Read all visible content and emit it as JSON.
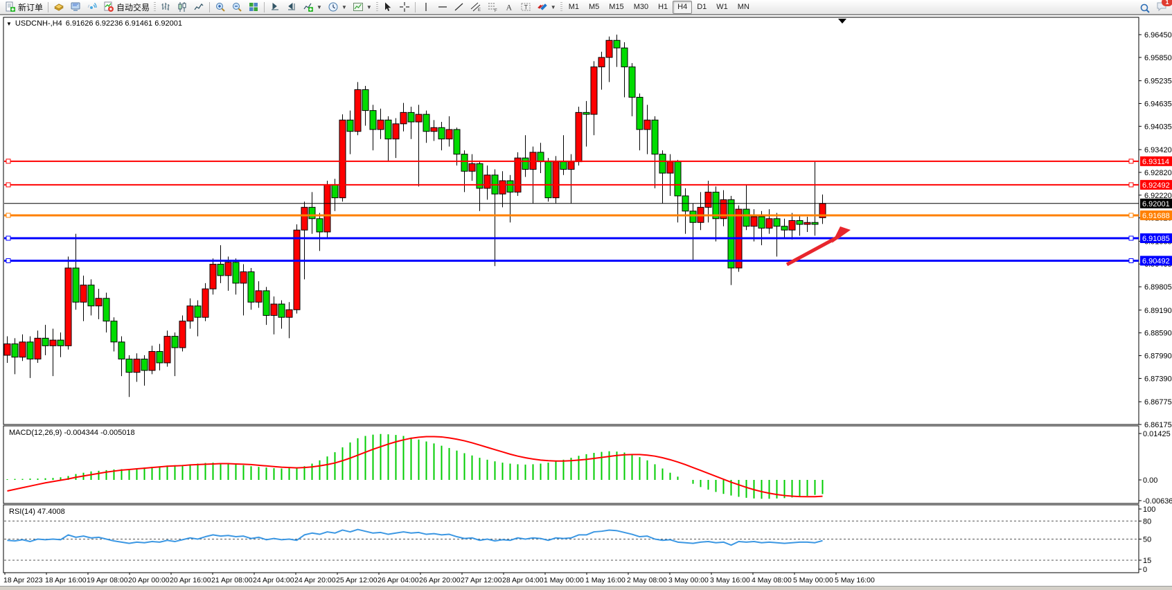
{
  "toolbar": {
    "new_order_label": "新订单",
    "auto_trading_label": "自动交易",
    "timeframes": [
      "M1",
      "M5",
      "M15",
      "M30",
      "H1",
      "H4",
      "D1",
      "W1",
      "MN"
    ],
    "active_timeframe": "H4",
    "notification_count": "1"
  },
  "chart": {
    "title_symbol": "USDCNH-,H4",
    "title_ohlc": "6.91626 6.92236 6.91461 6.92001",
    "axis_ticks": [
      "6.96450",
      "6.95850",
      "6.95235",
      "6.94635",
      "6.94035",
      "6.93420",
      "6.92820",
      "6.92220",
      "6.91620",
      "6.91005",
      "6.90405",
      "6.89805",
      "6.89190",
      "6.88590",
      "6.87990",
      "6.87390",
      "6.86775",
      "6.86175"
    ],
    "colors": {
      "up_candle": "#FF0000",
      "down_candle": "#00DC00",
      "line_red": "#FF0000",
      "line_blue": "#0000FF",
      "line_orange": "#FF8000",
      "current_price_line": "#000000",
      "macd_histogram": "#00CC00",
      "macd_signal": "#FF0000",
      "rsi_line": "#3B97E3",
      "arrow": "#E8262D"
    },
    "hlines": [
      {
        "price": 6.93114,
        "label": "6.93114",
        "color": "#FF0000",
        "width": 2
      },
      {
        "price": 6.92492,
        "label": "6.92492",
        "color": "#FF0000",
        "width": 2
      },
      {
        "price": 6.92001,
        "label": "6.92001",
        "color": "#000000",
        "width": 1
      },
      {
        "price": 6.91688,
        "label": "6.91688",
        "color": "#FF8000",
        "width": 3
      },
      {
        "price": 6.91085,
        "label": "6.91085",
        "color": "#0000FF",
        "width": 3
      },
      {
        "price": 6.90492,
        "label": "6.90492",
        "color": "#0000FF",
        "width": 3
      }
    ],
    "arrow_annotation": {
      "from": [
        1136,
        381
      ],
      "to": [
        1228,
        331
      ]
    }
  },
  "macd_panel": {
    "label": "MACD(12,26,9) -0.004344 -0.005018",
    "axis_ticks": [
      "0.01425",
      "0.00",
      "-0.006367"
    ]
  },
  "rsi_panel": {
    "label": "RSI(14) 47.4008",
    "axis_ticks": [
      "100",
      "80",
      "50",
      "15",
      "0"
    ],
    "dashed_levels": [
      80,
      50,
      15
    ]
  },
  "chart_data": [
    {
      "type": "candlestick",
      "title": "USDCNH-,H4",
      "ylim": [
        6.86175,
        6.96907
      ],
      "x_labels": [
        "18 Apr 2023",
        "18 Apr 16:00",
        "19 Apr 08:00",
        "20 Apr 00:00",
        "20 Apr 16:00",
        "21 Apr 08:00",
        "24 Apr 04:00",
        "24 Apr 20:00",
        "25 Apr 12:00",
        "26 Apr 04:00",
        "26 Apr 20:00",
        "27 Apr 12:00",
        "28 Apr 04:00",
        "1 May 00:00",
        "1 May 16:00",
        "2 May 08:00",
        "3 May 00:00",
        "3 May 16:00",
        "4 May 08:00",
        "5 May 00:00",
        "5 May 16:00"
      ],
      "levels": [
        6.93114,
        6.92492,
        6.92001,
        6.91688,
        6.91085,
        6.90492
      ],
      "ohlc": [
        [
          6.88,
          6.885,
          6.878,
          6.883
        ],
        [
          6.883,
          6.8845,
          6.875,
          6.8795
        ],
        [
          6.8795,
          6.8855,
          6.8785,
          6.8835
        ],
        [
          6.8835,
          6.885,
          6.874,
          6.879
        ],
        [
          6.879,
          6.8865,
          6.878,
          6.8845
        ],
        [
          6.8845,
          6.888,
          6.88,
          6.8825
        ],
        [
          6.8825,
          6.887,
          6.8745,
          6.884
        ],
        [
          6.884,
          6.886,
          6.8795,
          6.8825
        ],
        [
          6.8825,
          6.906,
          6.8815,
          6.903
        ],
        [
          6.903,
          6.912,
          6.892,
          6.894
        ],
        [
          6.894,
          6.901,
          6.889,
          6.8985
        ],
        [
          6.8985,
          6.9,
          6.8905,
          6.893
        ],
        [
          6.893,
          6.8975,
          6.8895,
          6.895
        ],
        [
          6.895,
          6.8965,
          6.886,
          6.889
        ],
        [
          6.889,
          6.89,
          6.881,
          6.8835
        ],
        [
          6.8835,
          6.885,
          6.8745,
          6.879
        ],
        [
          6.879,
          6.88,
          6.869,
          6.8755
        ],
        [
          6.8755,
          6.8805,
          6.873,
          6.879
        ],
        [
          6.879,
          6.88,
          6.872,
          6.876
        ],
        [
          6.876,
          6.8825,
          6.875,
          6.881
        ],
        [
          6.881,
          6.883,
          6.876,
          6.878
        ],
        [
          6.878,
          6.8865,
          6.877,
          6.885
        ],
        [
          6.885,
          6.886,
          6.8745,
          6.882
        ],
        [
          6.882,
          6.8905,
          6.881,
          6.889
        ],
        [
          6.889,
          6.895,
          6.887,
          6.893
        ],
        [
          6.893,
          6.8945,
          6.885,
          6.89
        ],
        [
          6.89,
          6.899,
          6.889,
          6.8975
        ],
        [
          6.8975,
          6.9055,
          6.896,
          6.904
        ],
        [
          6.904,
          6.909,
          6.899,
          6.901
        ],
        [
          6.901,
          6.906,
          6.897,
          6.9045
        ],
        [
          6.9045,
          6.9055,
          6.896,
          6.899
        ],
        [
          6.899,
          6.904,
          6.8905,
          6.902
        ],
        [
          6.902,
          6.903,
          6.892,
          6.894
        ],
        [
          6.894,
          6.8995,
          6.8925,
          6.897
        ],
        [
          6.897,
          6.898,
          6.888,
          6.8905
        ],
        [
          6.8905,
          6.8955,
          6.8855,
          6.8935
        ],
        [
          6.8935,
          6.8945,
          6.887,
          6.89
        ],
        [
          6.89,
          6.894,
          6.8845,
          6.892
        ],
        [
          6.892,
          6.9145,
          6.891,
          6.913
        ],
        [
          6.913,
          6.9205,
          6.9,
          6.919
        ],
        [
          6.919,
          6.923,
          6.912,
          6.916
        ],
        [
          6.916,
          6.9175,
          6.9075,
          6.9125
        ],
        [
          6.9125,
          6.926,
          6.911,
          6.925
        ],
        [
          6.925,
          6.9265,
          6.918,
          6.9215
        ],
        [
          6.9215,
          6.9435,
          6.9205,
          6.942
        ],
        [
          6.942,
          6.9445,
          6.933,
          6.939
        ],
        [
          6.939,
          6.952,
          6.938,
          6.95
        ],
        [
          6.95,
          6.951,
          6.9405,
          6.9445
        ],
        [
          6.9445,
          6.946,
          6.934,
          6.9395
        ],
        [
          6.9395,
          6.945,
          6.937,
          6.942
        ],
        [
          6.942,
          6.943,
          6.931,
          6.937
        ],
        [
          6.937,
          6.9425,
          6.932,
          6.941
        ],
        [
          6.941,
          6.9465,
          6.939,
          6.944
        ],
        [
          6.944,
          6.9455,
          6.937,
          6.9415
        ],
        [
          6.9415,
          6.946,
          6.9245,
          6.9435
        ],
        [
          6.9435,
          6.9445,
          6.936,
          6.939
        ],
        [
          6.939,
          6.942,
          6.9365,
          6.94
        ],
        [
          6.94,
          6.9415,
          6.934,
          6.937
        ],
        [
          6.937,
          6.943,
          6.935,
          6.9395
        ],
        [
          6.9395,
          6.94,
          6.93,
          6.933
        ],
        [
          6.933,
          6.934,
          6.923,
          6.9285
        ],
        [
          6.9285,
          6.933,
          6.926,
          6.9305
        ],
        [
          6.9305,
          6.931,
          6.918,
          6.924
        ],
        [
          6.924,
          6.93,
          6.921,
          6.9275
        ],
        [
          6.9275,
          6.929,
          6.9035,
          6.9225
        ],
        [
          6.9225,
          6.9285,
          6.919,
          6.926
        ],
        [
          6.926,
          6.9275,
          6.915,
          6.923
        ],
        [
          6.923,
          6.9335,
          6.922,
          6.932
        ],
        [
          6.932,
          6.938,
          6.927,
          6.929
        ],
        [
          6.929,
          6.935,
          6.92,
          6.9335
        ],
        [
          6.9335,
          6.936,
          6.928,
          6.931
        ],
        [
          6.931,
          6.932,
          6.9205,
          6.9215
        ],
        [
          6.9215,
          6.9325,
          6.92,
          6.931
        ],
        [
          6.931,
          6.938,
          6.9275,
          6.929
        ],
        [
          6.929,
          6.933,
          6.92,
          6.931
        ],
        [
          6.931,
          6.9455,
          6.93,
          6.944
        ],
        [
          6.944,
          6.947,
          6.935,
          6.9435
        ],
        [
          6.9435,
          6.9575,
          6.938,
          6.956
        ],
        [
          6.956,
          6.96,
          6.95,
          6.9585
        ],
        [
          6.9585,
          6.964,
          6.952,
          6.963
        ],
        [
          6.963,
          6.9645,
          6.956,
          6.961
        ],
        [
          6.961,
          6.9625,
          6.948,
          6.956
        ],
        [
          6.956,
          6.957,
          6.943,
          6.948
        ],
        [
          6.948,
          6.949,
          6.934,
          6.9395
        ],
        [
          6.9395,
          6.946,
          6.933,
          6.942
        ],
        [
          6.942,
          6.943,
          6.924,
          6.933
        ],
        [
          6.933,
          6.934,
          6.92,
          6.928
        ],
        [
          6.928,
          6.933,
          6.922,
          6.931
        ],
        [
          6.931,
          6.9315,
          6.915,
          6.922
        ],
        [
          6.922,
          6.924,
          6.912,
          6.918
        ],
        [
          6.918,
          6.92,
          6.905,
          6.915
        ],
        [
          6.915,
          6.923,
          6.913,
          6.919
        ],
        [
          6.919,
          6.926,
          6.915,
          6.923
        ],
        [
          6.923,
          6.9245,
          6.91,
          6.916
        ],
        [
          6.916,
          6.9235,
          6.914,
          6.921
        ],
        [
          6.921,
          6.922,
          6.8985,
          6.903
        ],
        [
          6.903,
          6.9195,
          6.902,
          6.9185
        ],
        [
          6.9185,
          6.925,
          6.913,
          6.914
        ],
        [
          6.914,
          6.9185,
          6.91,
          6.9165
        ],
        [
          6.9165,
          6.918,
          6.909,
          6.9135
        ],
        [
          6.9135,
          6.9185,
          6.912,
          6.916
        ],
        [
          6.916,
          6.9175,
          6.906,
          6.914
        ],
        [
          6.914,
          6.916,
          6.911,
          6.913
        ],
        [
          6.913,
          6.9175,
          6.9105,
          6.9155
        ],
        [
          6.9155,
          6.917,
          6.9115,
          6.9145
        ],
        [
          6.9145,
          6.9165,
          6.9125,
          6.915
        ],
        [
          6.915,
          6.931,
          6.9115,
          6.9145
        ],
        [
          6.91626,
          6.92236,
          6.91461,
          6.92001
        ]
      ]
    },
    {
      "type": "bar",
      "title": "MACD(12,26,9)",
      "current_values": "-0.004344 -0.005018",
      "ylim": [
        -0.00713,
        0.01635
      ],
      "values": [
        0.0002,
        0.0003,
        0.0003,
        0.0004,
        0.0004,
        0.0005,
        0.0006,
        0.0008,
        0.0012,
        0.0018,
        0.0022,
        0.0026,
        0.0028,
        0.003,
        0.0032,
        0.0033,
        0.0034,
        0.0036,
        0.0038,
        0.004,
        0.0042,
        0.0044,
        0.0045,
        0.0046,
        0.0048,
        0.005,
        0.0052,
        0.0053,
        0.0052,
        0.005,
        0.0048,
        0.0045,
        0.0042,
        0.004,
        0.0038,
        0.0036,
        0.0035,
        0.0036,
        0.0038,
        0.0042,
        0.005,
        0.006,
        0.0072,
        0.0085,
        0.01,
        0.0115,
        0.0128,
        0.0135,
        0.0139,
        0.0141,
        0.014,
        0.0138,
        0.0135,
        0.013,
        0.0124,
        0.0118,
        0.0112,
        0.0105,
        0.0098,
        0.009,
        0.0082,
        0.0075,
        0.0068,
        0.0062,
        0.0057,
        0.0053,
        0.005,
        0.0048,
        0.0047,
        0.0048,
        0.005,
        0.0053,
        0.0057,
        0.0062,
        0.0068,
        0.0074,
        0.0079,
        0.0083,
        0.0086,
        0.0088,
        0.0087,
        0.0084,
        0.0078,
        0.007,
        0.006,
        0.0048,
        0.0035,
        0.0022,
        0.001,
        0.0,
        -0.0012,
        -0.0022,
        -0.003,
        -0.0037,
        -0.0043,
        -0.0048,
        -0.0052,
        -0.0055,
        -0.0057,
        -0.0058,
        -0.0058,
        -0.0057,
        -0.0056,
        -0.0054,
        -0.0052,
        -0.0049,
        -0.0046,
        -0.004344
      ],
      "signal": [
        -0.0034,
        -0.0029,
        -0.0024,
        -0.0019,
        -0.0014,
        -0.0009,
        -0.0005,
        -0.0001,
        0.0003,
        0.0008,
        0.0012,
        0.0016,
        0.002,
        0.0024,
        0.0027,
        0.003,
        0.0032,
        0.0034,
        0.0036,
        0.0038,
        0.004,
        0.0042,
        0.0043,
        0.0044,
        0.0046,
        0.0047,
        0.0048,
        0.0049,
        0.005,
        0.005,
        0.0049,
        0.0048,
        0.0047,
        0.0045,
        0.0043,
        0.0041,
        0.0039,
        0.0038,
        0.0037,
        0.0038,
        0.004,
        0.0043,
        0.0047,
        0.0052,
        0.0059,
        0.0067,
        0.0076,
        0.0085,
        0.0094,
        0.0102,
        0.011,
        0.0117,
        0.0123,
        0.0128,
        0.0131,
        0.0133,
        0.0133,
        0.0132,
        0.0129,
        0.0125,
        0.012,
        0.0114,
        0.0107,
        0.01,
        0.0093,
        0.0086,
        0.0079,
        0.0073,
        0.0068,
        0.0064,
        0.0061,
        0.0059,
        0.0058,
        0.0058,
        0.0059,
        0.0061,
        0.0063,
        0.0066,
        0.0069,
        0.0072,
        0.0075,
        0.0077,
        0.0078,
        0.0078,
        0.0076,
        0.0073,
        0.0068,
        0.0062,
        0.0055,
        0.0047,
        0.0038,
        0.0029,
        0.002,
        0.0011,
        0.0002,
        -0.0007,
        -0.0015,
        -0.0023,
        -0.003,
        -0.0036,
        -0.0041,
        -0.0045,
        -0.0048,
        -0.005,
        -0.00512,
        -0.00517,
        -0.00515,
        -0.005018
      ]
    },
    {
      "type": "line",
      "title": "RSI(14)",
      "current_value": 47.4008,
      "ylim": [
        0,
        100
      ],
      "levels": [
        80,
        50,
        15
      ],
      "values": [
        48,
        47,
        49,
        46,
        50,
        49,
        50,
        49,
        57,
        53,
        55,
        52,
        53,
        50,
        47,
        45,
        43,
        45,
        44,
        46,
        45,
        48,
        46,
        49,
        52,
        50,
        54,
        57,
        55,
        56,
        54,
        55,
        51,
        53,
        49,
        51,
        49,
        50,
        48,
        57,
        60,
        58,
        62,
        60,
        65,
        62,
        66,
        63,
        60,
        61,
        58,
        60,
        62,
        60,
        61,
        58,
        59,
        57,
        58,
        54,
        51,
        52,
        48,
        50,
        47,
        49,
        48,
        52,
        50,
        52,
        51,
        48,
        52,
        51,
        52,
        57,
        57,
        62,
        63,
        65,
        64,
        61,
        58,
        54,
        55,
        50,
        48,
        49,
        45,
        44,
        43,
        45,
        46,
        44,
        45,
        40,
        46,
        45,
        46,
        44,
        45,
        44,
        43,
        44,
        45,
        45,
        44,
        47.4
      ]
    }
  ]
}
